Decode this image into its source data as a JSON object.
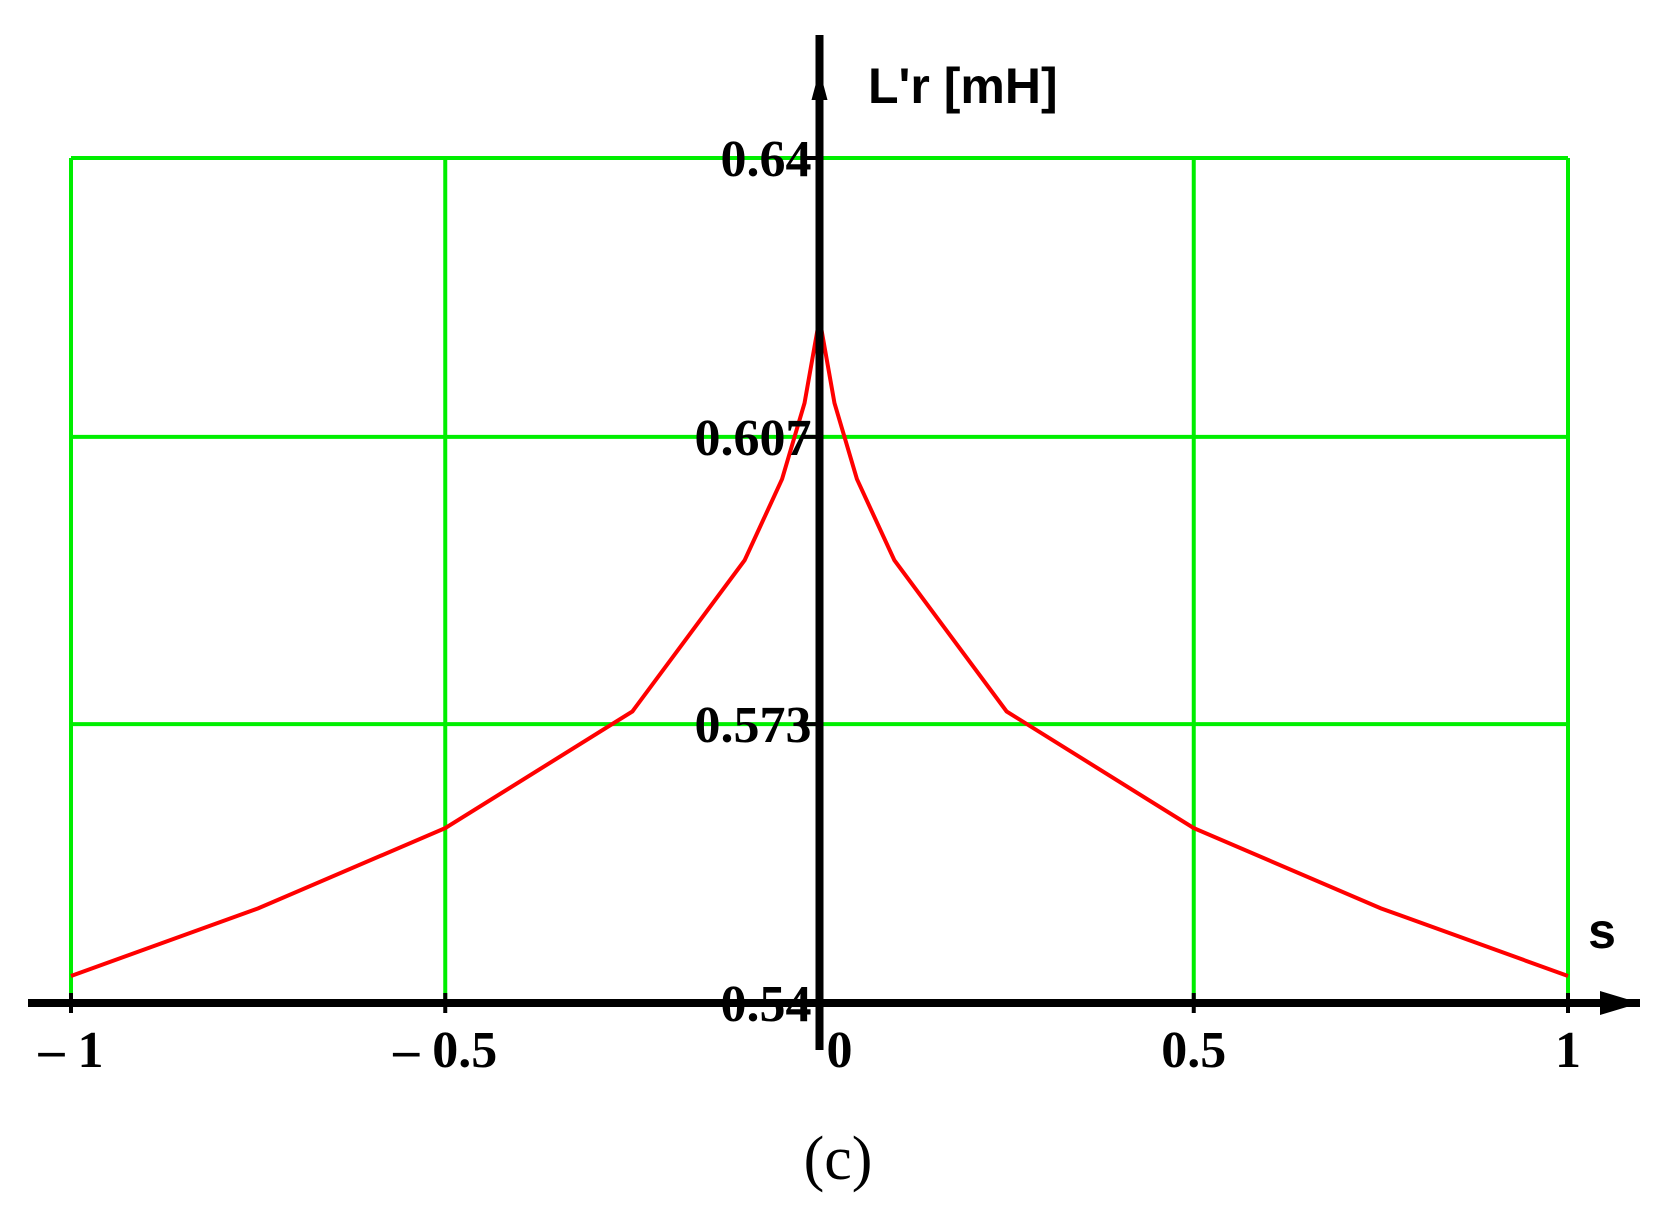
{
  "chart_data": {
    "type": "line",
    "y_label": "L'r [mH]",
    "x_label": "s",
    "caption": "(c)",
    "x": [
      -1,
      -0.75,
      -0.5,
      -0.25,
      -0.1,
      -0.05,
      -0.02,
      0,
      0.02,
      0.05,
      0.1,
      0.25,
      0.5,
      0.75,
      1
    ],
    "series": [
      {
        "name": "L'r",
        "color": "#ff0000",
        "values": [
          0.5432,
          0.5512,
          0.5607,
          0.5745,
          0.5924,
          0.602,
          0.611,
          0.621,
          0.611,
          0.602,
          0.5924,
          0.5745,
          0.5607,
          0.5512,
          0.5432
        ]
      }
    ],
    "xlim": [
      -1,
      1
    ],
    "ylim": [
      0.54,
      0.64
    ],
    "xticks": [
      {
        "value": -1,
        "label": "– 1"
      },
      {
        "value": -0.5,
        "label": "– 0.5"
      },
      0,
      0.5,
      1
    ],
    "yticks": [
      0.54,
      0.573,
      0.607,
      0.64
    ],
    "grid": true,
    "grid_color": "#00ee00"
  }
}
